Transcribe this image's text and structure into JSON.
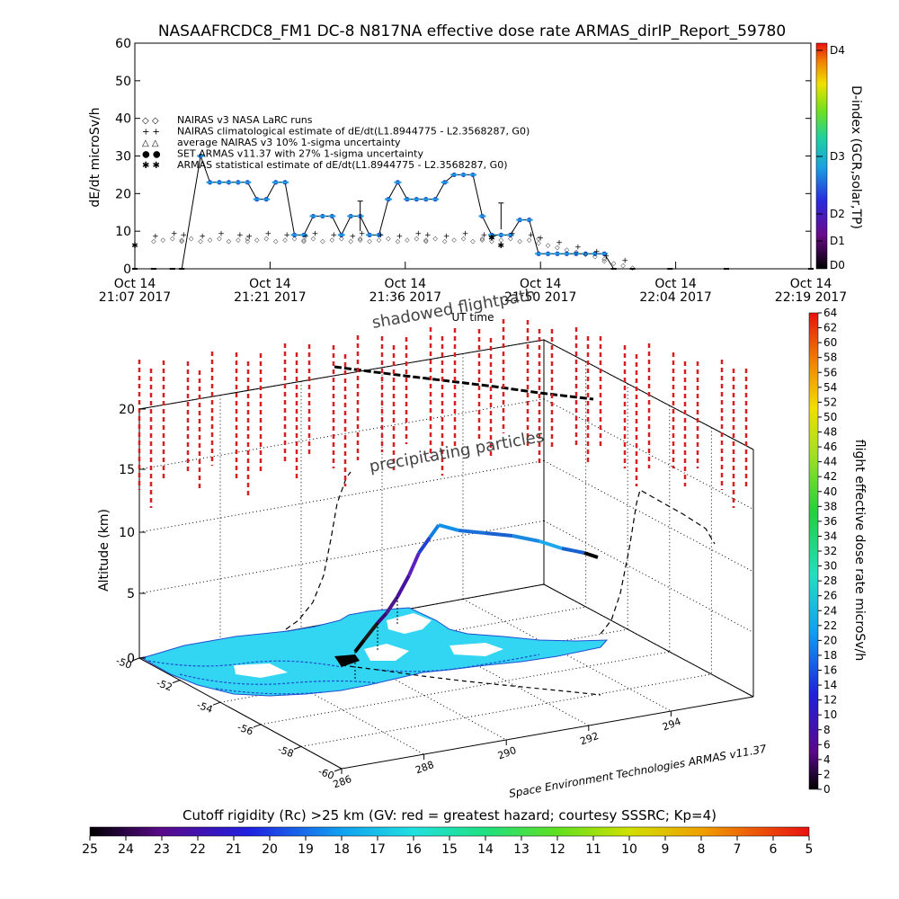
{
  "title": "NASAAFRCDC8_FM1 DC-8   N817NA effective dose rate ARMAS_dirIP_Report_59780",
  "credit": "Space Environment Technologies ARMAS v11.37",
  "top_chart": {
    "ylabel": "dE/dt microSv/h",
    "xlabel": "UT time",
    "right_label": "D-index (GCR,solar,TP)",
    "y_ticks": [
      "0",
      "10",
      "20",
      "30",
      "40",
      "50",
      "60"
    ],
    "x_ticks": [
      {
        "l1": "Oct 14",
        "l2": "21:07 2017"
      },
      {
        "l1": "Oct 14",
        "l2": "21:21 2017"
      },
      {
        "l1": "Oct 14",
        "l2": "21:36 2017"
      },
      {
        "l1": "Oct 14",
        "l2": "21:50 2017"
      },
      {
        "l1": "Oct 14",
        "l2": "22:04 2017"
      },
      {
        "l1": "Oct 14",
        "l2": "22:19 2017"
      }
    ],
    "d_ticks": [
      "D4",
      "D3",
      "D2",
      "D1",
      "D0"
    ],
    "legend": [
      {
        "sym": "◇ ◇",
        "text": "NAIRAS v3 NASA LaRC runs"
      },
      {
        "sym": "+ +",
        "text": "NAIRAS climatological estimate of dE/dt(L1.8944775 - L2.3568287, G0)"
      },
      {
        "sym": "△ △",
        "text": "average NAIRAS v3 10% 1-sigma uncertainty"
      },
      {
        "sym": "● ●",
        "text": "SET ARMAS v11.37 with 27% 1-sigma uncertainty"
      },
      {
        "sym": "✱ ✱",
        "text": "ARMAS statistical estimate of dE/dt(L1.8944775 - L2.3568287, G0)"
      }
    ]
  },
  "chart_data": [
    {
      "type": "line",
      "title": "NASAAFRCDC8_FM1 DC-8   N817NA effective dose rate ARMAS_dirIP_Report_59780",
      "xlabel": "UT time",
      "ylabel": "dE/dt microSv/h",
      "ylim": [
        0,
        60
      ],
      "x_range": [
        "21:07",
        "22:19"
      ],
      "series": [
        {
          "name": "SET ARMAS v11.37 with 27% 1-sigma uncertainty",
          "x": [
            "21:07",
            "21:09",
            "21:11",
            "21:12",
            "21:14",
            "21:15",
            "21:16",
            "21:17",
            "21:18",
            "21:19",
            "21:20",
            "21:21",
            "21:22",
            "21:23",
            "21:24",
            "21:25",
            "21:26",
            "21:27",
            "21:28",
            "21:29",
            "21:30",
            "21:31",
            "21:32",
            "21:33",
            "21:34",
            "21:35",
            "21:36",
            "21:37",
            "21:38",
            "21:39",
            "21:40",
            "21:41",
            "21:42",
            "21:43",
            "21:44",
            "21:45",
            "21:46",
            "21:47",
            "21:48",
            "21:49",
            "21:50",
            "21:51",
            "21:52",
            "21:53",
            "21:54",
            "21:55",
            "21:56",
            "21:57",
            "21:58",
            "22:00",
            "22:04",
            "22:10",
            "22:19"
          ],
          "values": [
            0,
            0,
            0,
            0,
            30,
            23,
            23,
            23,
            23,
            23,
            18.5,
            18.5,
            23,
            23,
            9,
            9,
            14,
            14,
            14,
            9,
            14,
            14,
            9,
            9,
            18.5,
            23,
            18.5,
            18.5,
            18.5,
            18.5,
            23,
            25,
            25,
            25,
            14,
            9,
            9,
            9,
            13,
            13,
            4,
            4,
            4,
            4,
            4,
            4,
            4,
            4,
            0,
            0,
            0,
            0,
            0
          ]
        },
        {
          "name": "NAIRAS climatological estimate of dE/dt(L1.8944775 - L2.3568287, G0)",
          "x": [
            "21:07",
            "21:15",
            "21:25",
            "21:35",
            "21:45",
            "21:50",
            "21:55",
            "22:00"
          ],
          "values": [
            7,
            8,
            8,
            8,
            8,
            7,
            5,
            1
          ]
        }
      ]
    },
    {
      "type": "scatter",
      "title": "shadowed flightpath",
      "xlabel": "",
      "ylabel": "Altitude (km)",
      "zlim": [
        0,
        22
      ],
      "x_ticks": [
        "286",
        "288",
        "290",
        "292",
        "294"
      ],
      "y_ticks": [
        "-60",
        "-58",
        "-56",
        "-54",
        "-52",
        "-50"
      ],
      "z_ticks": [
        "0",
        "5",
        "10",
        "15",
        "20"
      ],
      "annotations": [
        "shadowed flightpath",
        "precipitating particles"
      ],
      "colorbar_right": {
        "label": "flight effective dose rate microSv/h",
        "range": [
          0,
          64
        ],
        "ticks": [
          "0",
          "2",
          "4",
          "6",
          "8",
          "10",
          "12",
          "14",
          "16",
          "18",
          "20",
          "22",
          "24",
          "26",
          "28",
          "30",
          "32",
          "34",
          "36",
          "38",
          "40",
          "42",
          "44",
          "46",
          "48",
          "50",
          "52",
          "54",
          "56",
          "58",
          "60",
          "62",
          "64"
        ]
      },
      "colorbar_bottom": {
        "label": "Cutoff rigidity (Rc) >25 km (GV: red = greatest hazard; courtesy SSSRC; Kp=4)",
        "ticks": [
          "25",
          "24",
          "23",
          "22",
          "21",
          "20",
          "19",
          "18",
          "17",
          "16",
          "15",
          "14",
          "13",
          "12",
          "11",
          "10",
          "9",
          "8",
          "7",
          "6",
          "5"
        ]
      },
      "flight_altitude_km": [
        0,
        3,
        6,
        9,
        10.5,
        10.2,
        9.8,
        9.3,
        8.5
      ]
    }
  ]
}
